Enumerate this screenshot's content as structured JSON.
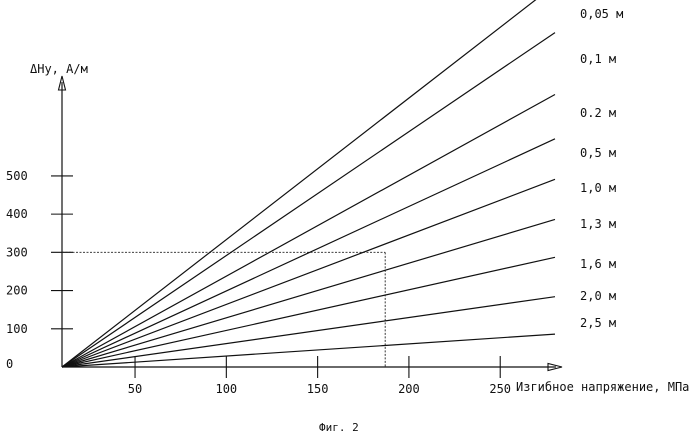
{
  "chart_data": {
    "type": "line",
    "title": "",
    "ylabel": "ΔHy, A/м",
    "xlabel": "Изгибное напряжение, МПа",
    "caption": "Фиг. 2",
    "x_ticks": [
      50,
      100,
      150,
      200,
      250
    ],
    "y_ticks": [
      0,
      100,
      200,
      300,
      400,
      500
    ],
    "x_range": [
      10,
      280
    ],
    "y_range": [
      0,
      580
    ],
    "guide": {
      "x": 187,
      "y": 300
    },
    "series": [
      {
        "name": "0,05 м",
        "points": [
          [
            10,
            0
          ],
          [
            280,
            1000
          ]
        ]
      },
      {
        "name": "0,1 м",
        "points": [
          [
            10,
            0
          ],
          [
            280,
            875
          ]
        ]
      },
      {
        "name": "0.2 м",
        "points": [
          [
            10,
            0
          ],
          [
            280,
            713
          ]
        ]
      },
      {
        "name": "0,5 м",
        "points": [
          [
            10,
            0
          ],
          [
            280,
            597
          ]
        ]
      },
      {
        "name": "1,0 м",
        "points": [
          [
            10,
            0
          ],
          [
            280,
            491
          ]
        ]
      },
      {
        "name": "1,3 м",
        "points": [
          [
            10,
            0
          ],
          [
            280,
            386
          ]
        ]
      },
      {
        "name": "1,6 м",
        "points": [
          [
            10,
            0
          ],
          [
            280,
            287
          ]
        ]
      },
      {
        "name": "2,0 м",
        "points": [
          [
            10,
            0
          ],
          [
            280,
            184
          ]
        ]
      },
      {
        "name": "2,5 м",
        "points": [
          [
            10,
            0
          ],
          [
            280,
            86
          ]
        ]
      }
    ]
  }
}
